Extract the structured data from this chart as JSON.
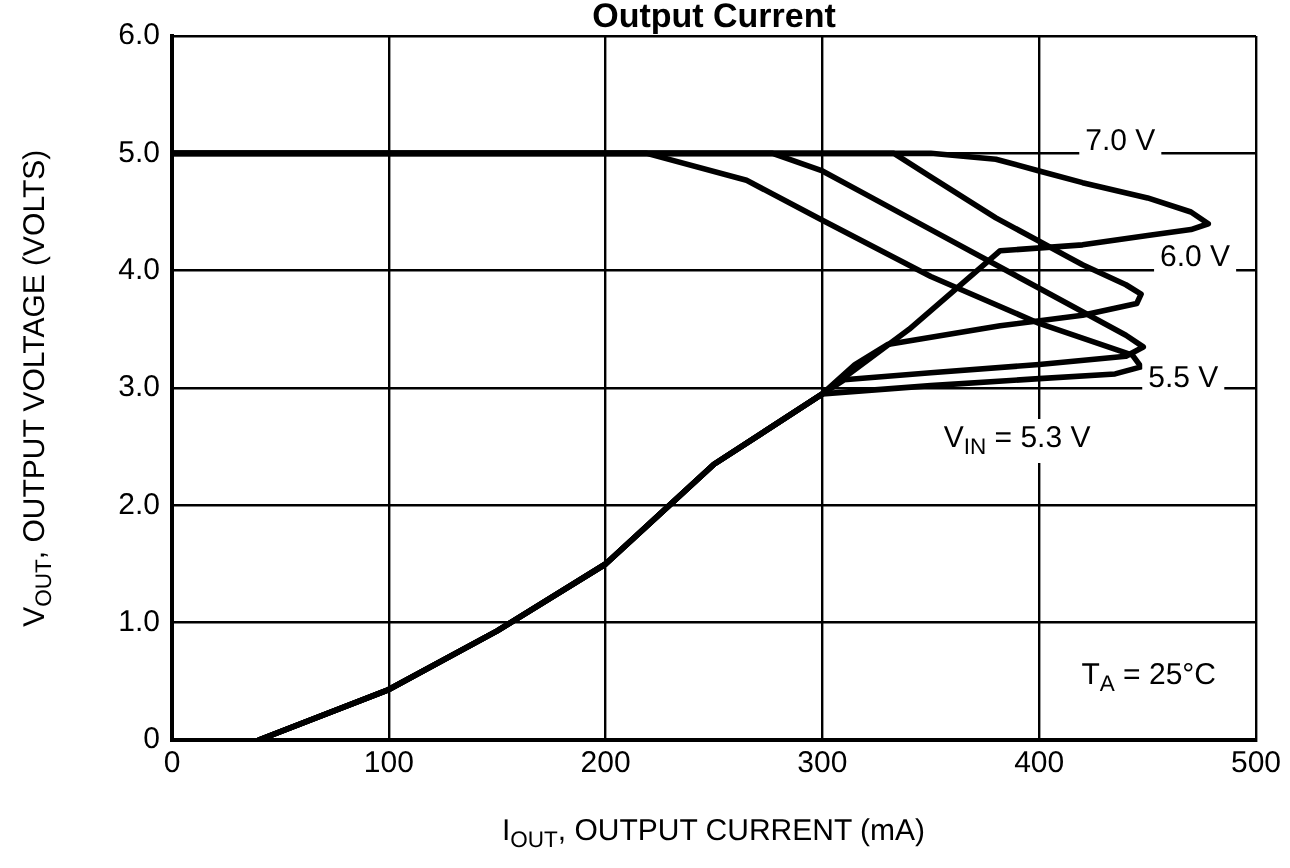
{
  "chart_data": {
    "type": "line",
    "title": "Output Current",
    "xlabel": "I$_{OUT}$, OUTPUT CURRENT (mA)",
    "ylabel": "V$_{OUT}$, OUTPUT VOLTAGE (VOLTS)",
    "series": [
      {
        "name": "7.0 V",
        "color": "#000000",
        "x": [
          40,
          100,
          150,
          200,
          250,
          300,
          340,
          382,
          420,
          450,
          470,
          478,
          470,
          450,
          420,
          400,
          380,
          350,
          300,
          250,
          200,
          100,
          0
        ],
        "values": [
          0,
          0.43,
          0.93,
          1.5,
          2.35,
          2.95,
          3.5,
          4.17,
          4.22,
          4.3,
          4.35,
          4.4,
          4.5,
          4.62,
          4.75,
          4.85,
          4.95,
          5,
          5,
          5,
          5,
          5,
          5
        ]
      },
      {
        "name": "6.0 V",
        "color": "#000000",
        "x": [
          40,
          100,
          150,
          200,
          250,
          300,
          315,
          330,
          382,
          420,
          445,
          447,
          440,
          420,
          400,
          380,
          350,
          333,
          300,
          250,
          200,
          100,
          0
        ],
        "values": [
          0,
          0.43,
          0.93,
          1.5,
          2.35,
          2.95,
          3.2,
          3.37,
          3.53,
          3.62,
          3.72,
          3.8,
          3.88,
          4.05,
          4.25,
          4.45,
          4.8,
          5,
          5,
          5,
          5,
          5,
          5
        ]
      },
      {
        "name": "5.5 V",
        "color": "#000000",
        "x": [
          40,
          100,
          150,
          200,
          250,
          300,
          310,
          350,
          400,
          440,
          448,
          440,
          420,
          400,
          380,
          350,
          320,
          300,
          277,
          250,
          200,
          100,
          0
        ],
        "values": [
          0,
          0.43,
          0.93,
          1.5,
          2.35,
          2.95,
          3.07,
          3.13,
          3.2,
          3.27,
          3.35,
          3.45,
          3.65,
          3.85,
          4.05,
          4.35,
          4.65,
          4.85,
          5,
          5,
          5,
          5,
          5
        ]
      },
      {
        "name": "V$_{IN}$ = 5.3 V",
        "color": "#000000",
        "x": [
          40,
          100,
          150,
          200,
          250,
          300,
          350,
          400,
          435,
          447,
          443,
          400,
          350,
          300,
          265,
          219,
          200,
          100,
          0
        ],
        "values": [
          0,
          0.43,
          0.93,
          1.5,
          2.35,
          2.95,
          3.02,
          3.08,
          3.12,
          3.18,
          3.28,
          3.55,
          3.95,
          4.43,
          4.77,
          5,
          5,
          5,
          5
        ]
      }
    ],
    "xlim": [
      0,
      500
    ],
    "xticks": [
      0,
      100,
      200,
      300,
      400,
      500
    ],
    "ylim": [
      0,
      6
    ],
    "yticks": [
      {
        "value": 0,
        "label": "0"
      },
      {
        "value": 1,
        "label": "1.0"
      },
      {
        "value": 2,
        "label": "2.0"
      },
      {
        "value": 3,
        "label": "3.0"
      },
      {
        "value": 4,
        "label": "4.0"
      },
      {
        "value": 5,
        "label": "5.0"
      },
      {
        "value": 6,
        "label": "6.0"
      }
    ],
    "grid": true,
    "legend": false,
    "marker": "none",
    "line_style": "solid",
    "annotations": [
      "T$_{A}$ = 25°C"
    ]
  }
}
